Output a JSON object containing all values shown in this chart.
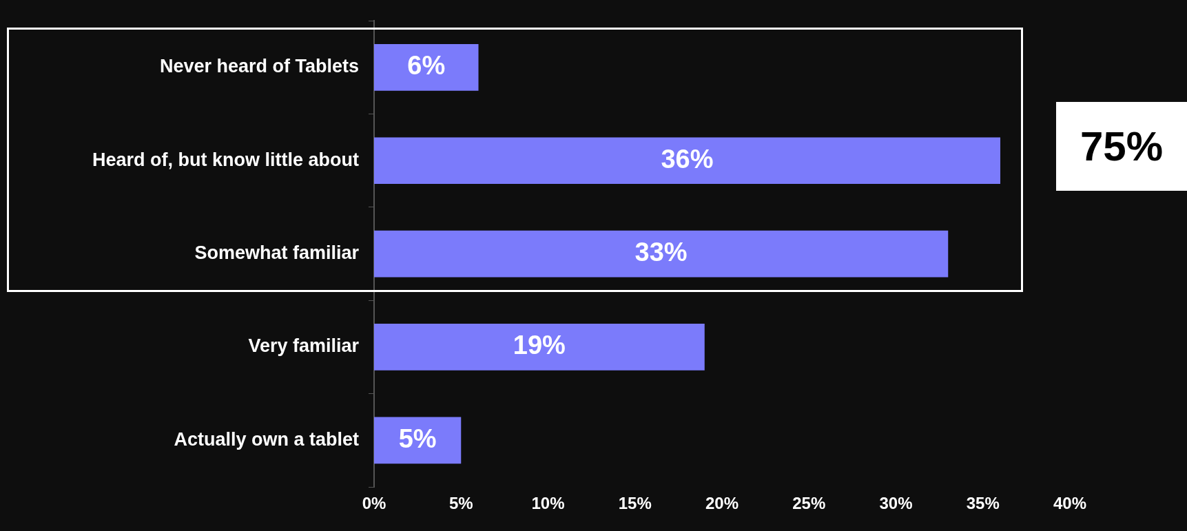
{
  "chart_data": {
    "type": "bar",
    "orientation": "horizontal",
    "categories": [
      "Never heard of Tablets",
      "Heard of, but know little about",
      "Somewhat familiar",
      "Very familiar",
      "Actually own a tablet"
    ],
    "values": [
      6,
      36,
      33,
      19,
      5
    ],
    "value_labels": [
      "6%",
      "36%",
      "33%",
      "19%",
      "5%"
    ],
    "color": "#7b7bfb",
    "xlim": [
      0,
      40
    ],
    "xticks": [
      {
        "value": 0,
        "label": "0%"
      },
      {
        "value": 5,
        "label": "5%"
      },
      {
        "value": 10,
        "label": "10%"
      },
      {
        "value": 15,
        "label": "15%"
      },
      {
        "value": 20,
        "label": "20%"
      },
      {
        "value": 25,
        "label": "25%"
      },
      {
        "value": 30,
        "label": "30%"
      },
      {
        "value": 35,
        "label": "35%"
      },
      {
        "value": 40,
        "label": "40%"
      }
    ],
    "grid": false,
    "legend": false,
    "annotations": [
      "75%"
    ]
  }
}
